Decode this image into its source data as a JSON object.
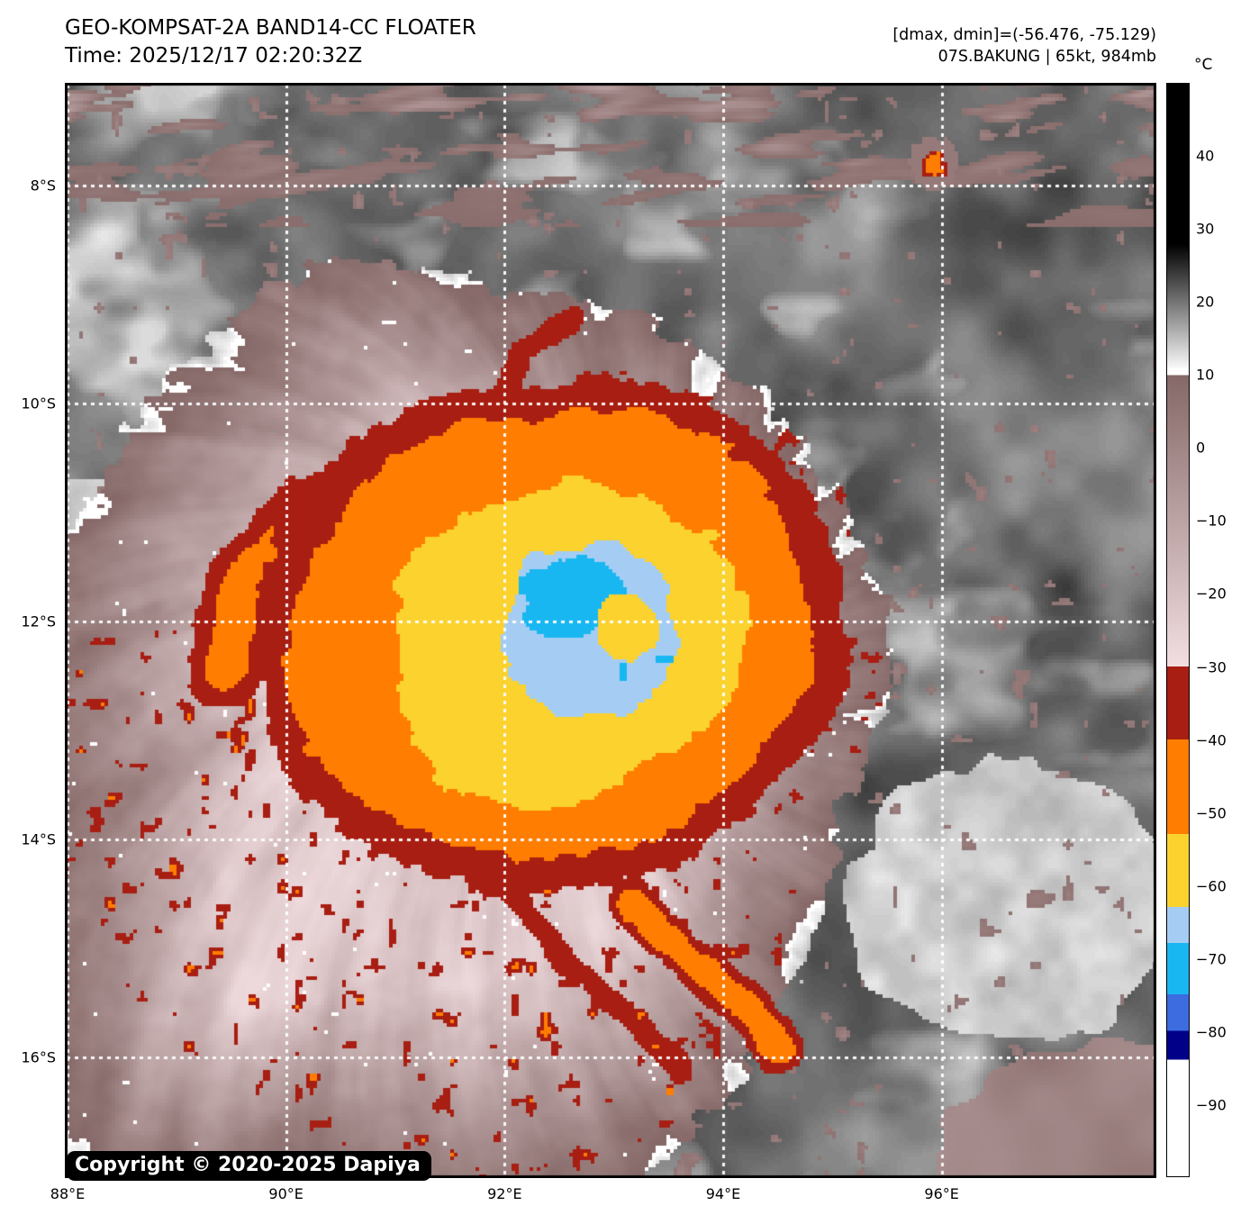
{
  "header": {
    "title": "GEO-KOMPSAT-2A BAND14-CC FLOATER",
    "time_line": "Time: 2025/12/17 02:20:32Z",
    "dmax_dmin_line": "[dmax, dmin]=(-56.476, -75.129)",
    "storm_line": "07S.BAKUNG | 65kt, 984mb"
  },
  "colorbar": {
    "unit": "°C",
    "top_value": 50,
    "bottom_value": -100,
    "ticks": [
      {
        "value": 40,
        "label": "40"
      },
      {
        "value": 30,
        "label": "30"
      },
      {
        "value": 20,
        "label": "20"
      },
      {
        "value": 10,
        "label": "10"
      },
      {
        "value": 0,
        "label": "0"
      },
      {
        "value": -10,
        "label": "−10"
      },
      {
        "value": -20,
        "label": "−20"
      },
      {
        "value": -30,
        "label": "−30"
      },
      {
        "value": -40,
        "label": "−40"
      },
      {
        "value": -50,
        "label": "−50"
      },
      {
        "value": -60,
        "label": "−60"
      },
      {
        "value": -70,
        "label": "−70"
      },
      {
        "value": -80,
        "label": "−80"
      },
      {
        "value": -90,
        "label": "−90"
      }
    ],
    "segments": [
      {
        "from": 50,
        "to": 28,
        "color": "#000000"
      },
      {
        "from": 28,
        "to": 11,
        "color": "#000000",
        "color_end": "#f8f8f8"
      },
      {
        "from": 11,
        "to": 10,
        "color": "#ffffff"
      },
      {
        "from": 10,
        "to": -30,
        "color": "#856867",
        "color_end": "#f2dee1"
      },
      {
        "from": -30,
        "to": -40,
        "color": "#a81e12"
      },
      {
        "from": -40,
        "to": -53,
        "color": "#ff7d00"
      },
      {
        "from": -53,
        "to": -63,
        "color": "#fbd22e"
      },
      {
        "from": -63,
        "to": -68,
        "color": "#a5cdf3"
      },
      {
        "from": -68,
        "to": -75,
        "color": "#18b7f2"
      },
      {
        "from": -75,
        "to": -80,
        "color": "#3d6be0"
      },
      {
        "from": -80,
        "to": -84,
        "color": "#000089"
      },
      {
        "from": -84,
        "to": -100,
        "color": "#ffffff"
      }
    ]
  },
  "axes": {
    "lon_ticks": [
      {
        "lon": 88,
        "label": "88°E"
      },
      {
        "lon": 90,
        "label": "90°E"
      },
      {
        "lon": 92,
        "label": "92°E"
      },
      {
        "lon": 94,
        "label": "94°E"
      },
      {
        "lon": 96,
        "label": "96°E"
      }
    ],
    "lat_ticks": [
      {
        "lat": -8,
        "label": "8°S"
      },
      {
        "lat": -10,
        "label": "10°S"
      },
      {
        "lat": -12,
        "label": "12°S"
      },
      {
        "lat": -14,
        "label": "14°S"
      },
      {
        "lat": -16,
        "label": "16°S"
      }
    ]
  },
  "copyright": "Copyright © 2020-2025 Dapiya"
}
